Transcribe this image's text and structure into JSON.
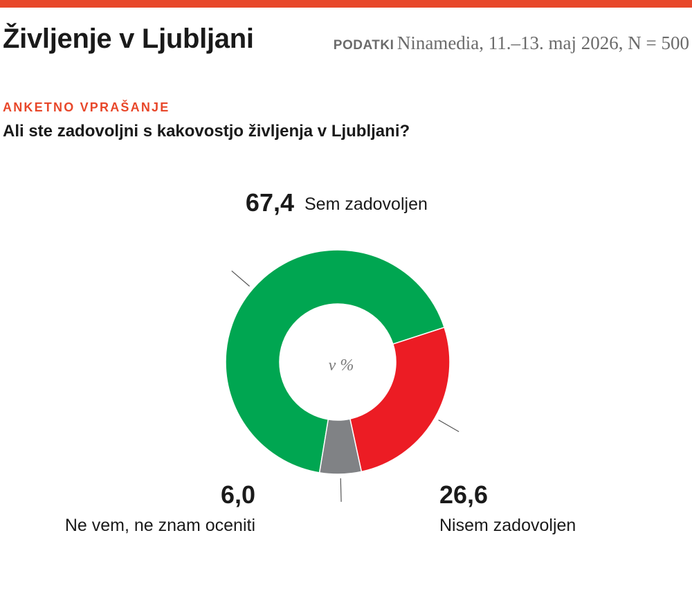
{
  "header": {
    "title": "Življenje v Ljubljani",
    "source_label": "PODATKI",
    "source_text": "Ninamedia, 11.–13. maj 2026, N = 500"
  },
  "question": {
    "kicker": "ANKETNO VPRAŠANJE",
    "text": "Ali ste zadovoljni s kakovostjo življenja v Ljubljani?"
  },
  "colors": {
    "accent": "#e8472a",
    "divider": "#ffffff",
    "leader": "#555555"
  },
  "chart_data": {
    "type": "pie",
    "donut": true,
    "center_label": "v %",
    "slices": [
      {
        "label": "Sem zadovoljen",
        "value": 67.4,
        "display": "67,4",
        "color": "#00a651"
      },
      {
        "label": "Nisem zadovoljen",
        "value": 26.6,
        "display": "26,6",
        "color": "#ec1c24"
      },
      {
        "label": "Ne vem, ne znam oceniti",
        "value": 6.0,
        "display": "6,0",
        "color": "#808285"
      }
    ]
  }
}
